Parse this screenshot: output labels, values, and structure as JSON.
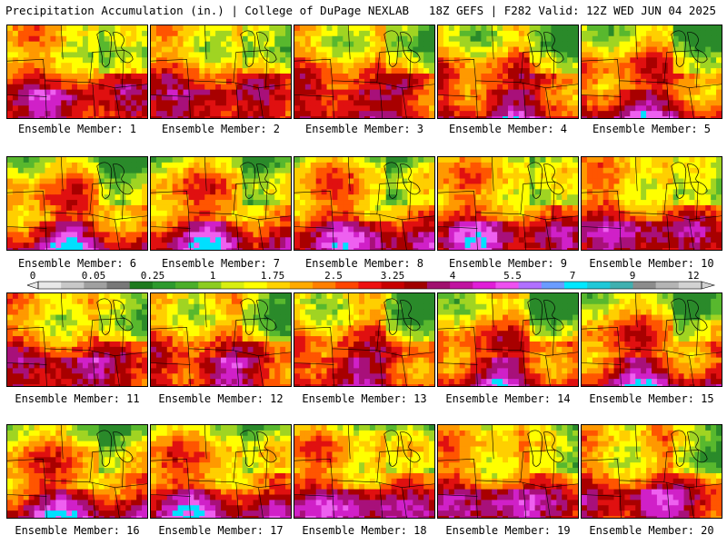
{
  "header": {
    "left": "Precipitation Accumulation (in.) | College of DuPage NEXLAB",
    "right": "18Z GEFS | F282 Valid: 12Z WED JUN 04 2025"
  },
  "panels": [
    {
      "label": "Ensemble Member: 1"
    },
    {
      "label": "Ensemble Member: 2"
    },
    {
      "label": "Ensemble Member: 3"
    },
    {
      "label": "Ensemble Member: 4"
    },
    {
      "label": "Ensemble Member: 5"
    },
    {
      "label": "Ensemble Member: 6"
    },
    {
      "label": "Ensemble Member: 7"
    },
    {
      "label": "Ensemble Member: 8"
    },
    {
      "label": "Ensemble Member: 9"
    },
    {
      "label": "Ensemble Member: 10"
    },
    {
      "label": "Ensemble Member: 11"
    },
    {
      "label": "Ensemble Member: 12"
    },
    {
      "label": "Ensemble Member: 13"
    },
    {
      "label": "Ensemble Member: 14"
    },
    {
      "label": "Ensemble Member: 15"
    },
    {
      "label": "Ensemble Member: 16"
    },
    {
      "label": "Ensemble Member: 17"
    },
    {
      "label": "Ensemble Member: 18"
    },
    {
      "label": "Ensemble Member: 19"
    },
    {
      "label": "Ensemble Member: 20"
    }
  ],
  "colorbar": {
    "ticks": [
      "0",
      "0.05",
      "0.25",
      "1",
      "1.75",
      "2.5",
      "3.25",
      "4",
      "5.5",
      "7",
      "9",
      "12"
    ],
    "colors": [
      "#e8e8e8",
      "#c8c8c8",
      "#a0a0a0",
      "#787878",
      "#1e7a1e",
      "#2e9a2e",
      "#4caf2a",
      "#8ccc20",
      "#d8ee10",
      "#ffff00",
      "#ffd200",
      "#ffaa00",
      "#ff7f00",
      "#ff4500",
      "#ee1010",
      "#c80000",
      "#a00000",
      "#a0106e",
      "#c014a0",
      "#e01ed8",
      "#ee50f0",
      "#b070ff",
      "#6a9cff",
      "#00e8ff",
      "#20c8d8",
      "#40b0b0",
      "#8c8c8c",
      "#b4b4b4",
      "#d2d2d2"
    ]
  }
}
